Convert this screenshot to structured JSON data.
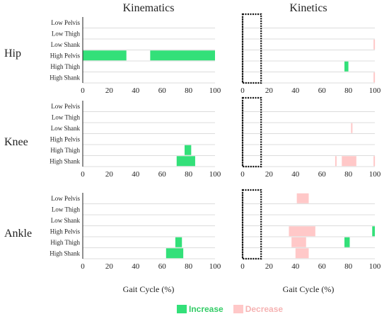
{
  "column_titles": [
    "Kinematics",
    "Kinetics"
  ],
  "row_labels": [
    "Hip",
    "Knee",
    "Ankle"
  ],
  "x_axis_label": "Gait Cycle (%)",
  "legend": [
    {
      "label": "Increase",
      "color": "#33e079",
      "text_color": "#33cc66"
    },
    {
      "label": "Decrease",
      "color": "#ffc8c8",
      "text_color": "#f6b3b3"
    }
  ],
  "chart_data": {
    "type": "bar",
    "orientation": "horizontal",
    "xlim": [
      0,
      100
    ],
    "xticks": [
      0,
      20,
      40,
      60,
      80,
      100
    ],
    "categories": [
      "Low Pelvis",
      "Low Thigh",
      "Low Shank",
      "High Pelvis",
      "High Thigh",
      "High Shank"
    ],
    "excluded_region": [
      0,
      14
    ],
    "grid": true,
    "panels": [
      {
        "row": "Hip",
        "column": "Kinematics",
        "show_xlabel": false,
        "intervals": [
          {
            "category": "High Pelvis",
            "start": 0,
            "end": 33,
            "effect": "Increase"
          },
          {
            "category": "High Pelvis",
            "start": 51,
            "end": 100,
            "effect": "Increase"
          }
        ]
      },
      {
        "row": "Hip",
        "column": "Kinetics",
        "show_xlabel": false,
        "intervals": [
          {
            "category": "Low Shank",
            "start": 99,
            "end": 100,
            "effect": "Decrease"
          },
          {
            "category": "High Thigh",
            "start": 77,
            "end": 80,
            "effect": "Increase"
          },
          {
            "category": "High Shank",
            "start": 99,
            "end": 100,
            "effect": "Decrease"
          }
        ]
      },
      {
        "row": "Knee",
        "column": "Kinematics",
        "show_xlabel": false,
        "intervals": [
          {
            "category": "High Thigh",
            "start": 77,
            "end": 82,
            "effect": "Increase"
          },
          {
            "category": "High Shank",
            "start": 71,
            "end": 85,
            "effect": "Increase"
          }
        ]
      },
      {
        "row": "Knee",
        "column": "Kinetics",
        "show_xlabel": false,
        "intervals": [
          {
            "category": "Low Shank",
            "start": 82,
            "end": 83,
            "effect": "Decrease"
          },
          {
            "category": "High Shank",
            "start": 70,
            "end": 71,
            "effect": "Decrease"
          },
          {
            "category": "High Shank",
            "start": 75,
            "end": 86,
            "effect": "Decrease"
          },
          {
            "category": "High Shank",
            "start": 99,
            "end": 100,
            "effect": "Decrease"
          }
        ]
      },
      {
        "row": "Ankle",
        "column": "Kinematics",
        "show_xlabel": true,
        "intervals": [
          {
            "category": "High Thigh",
            "start": 70,
            "end": 75,
            "effect": "Increase"
          },
          {
            "category": "High Shank",
            "start": 63,
            "end": 76,
            "effect": "Increase"
          }
        ]
      },
      {
        "row": "Ankle",
        "column": "Kinetics",
        "show_xlabel": true,
        "intervals": [
          {
            "category": "Low Pelvis",
            "start": 41,
            "end": 50,
            "effect": "Decrease"
          },
          {
            "category": "High Pelvis",
            "start": 35,
            "end": 55,
            "effect": "Decrease"
          },
          {
            "category": "High Pelvis",
            "start": 98,
            "end": 100,
            "effect": "Increase"
          },
          {
            "category": "High Thigh",
            "start": 37,
            "end": 48,
            "effect": "Decrease"
          },
          {
            "category": "High Thigh",
            "start": 77,
            "end": 81,
            "effect": "Increase"
          },
          {
            "category": "High Shank",
            "start": 40,
            "end": 50,
            "effect": "Decrease"
          }
        ]
      }
    ]
  }
}
